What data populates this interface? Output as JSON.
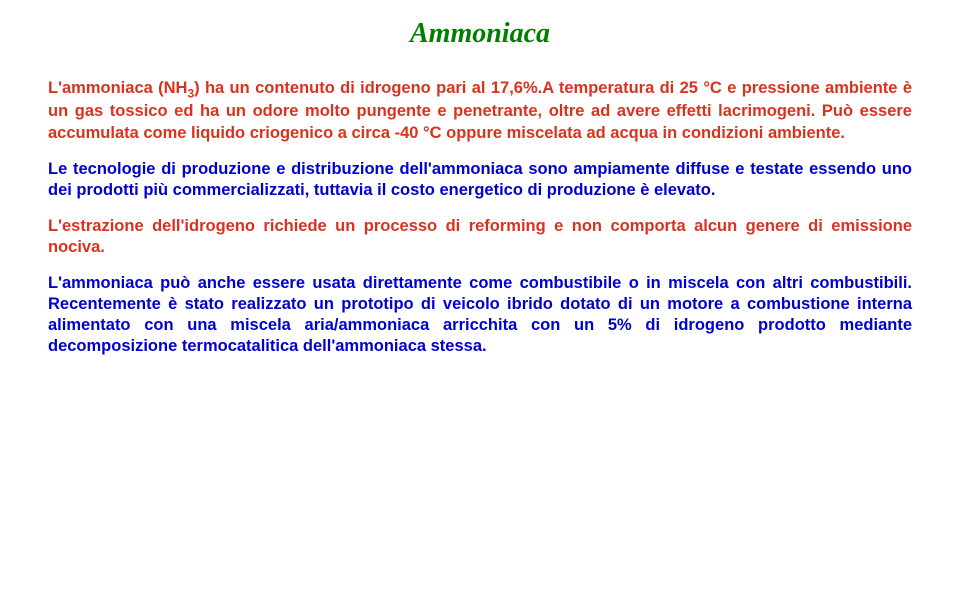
{
  "title": "Ammoniaca",
  "colors": {
    "title": "#008000",
    "para1": "#d9331e",
    "para2": "#0000d0",
    "para3": "#d9331e",
    "para4": "#0000d0"
  },
  "paragraphs": {
    "p1a": "L'ammoniaca (NH",
    "p1b": ") ha un contenuto di idrogeno pari al 17,6%.A temperatura di 25 °C e pressione ambiente è un gas tossico ed ha un odore molto pungente e penetrante, oltre ad avere effetti lacrimogeni. Può essere accumulata come liquido criogenico a circa -40 °C oppure miscelata ad acqua in condizioni ambiente.",
    "p1sub": "3",
    "p2": "Le tecnologie di produzione e distribuzione dell'ammoniaca sono ampiamente diffuse e testate essendo uno dei prodotti più commercializzati, tuttavia il costo energetico di produzione è elevato.",
    "p3": "L'estrazione dell'idrogeno richiede un processo di reforming e non comporta alcun genere di emissione nociva.",
    "p4": "L'ammoniaca può anche essere usata direttamente come combustibile o in miscela con altri combustibili. Recentemente è stato realizzato un prototipo di veicolo ibrido dotato di un motore a combustione interna alimentato con una miscela aria/ammoniaca arricchita con un 5% di idrogeno prodotto mediante decomposizione termocatalitica dell'ammoniaca stessa."
  }
}
